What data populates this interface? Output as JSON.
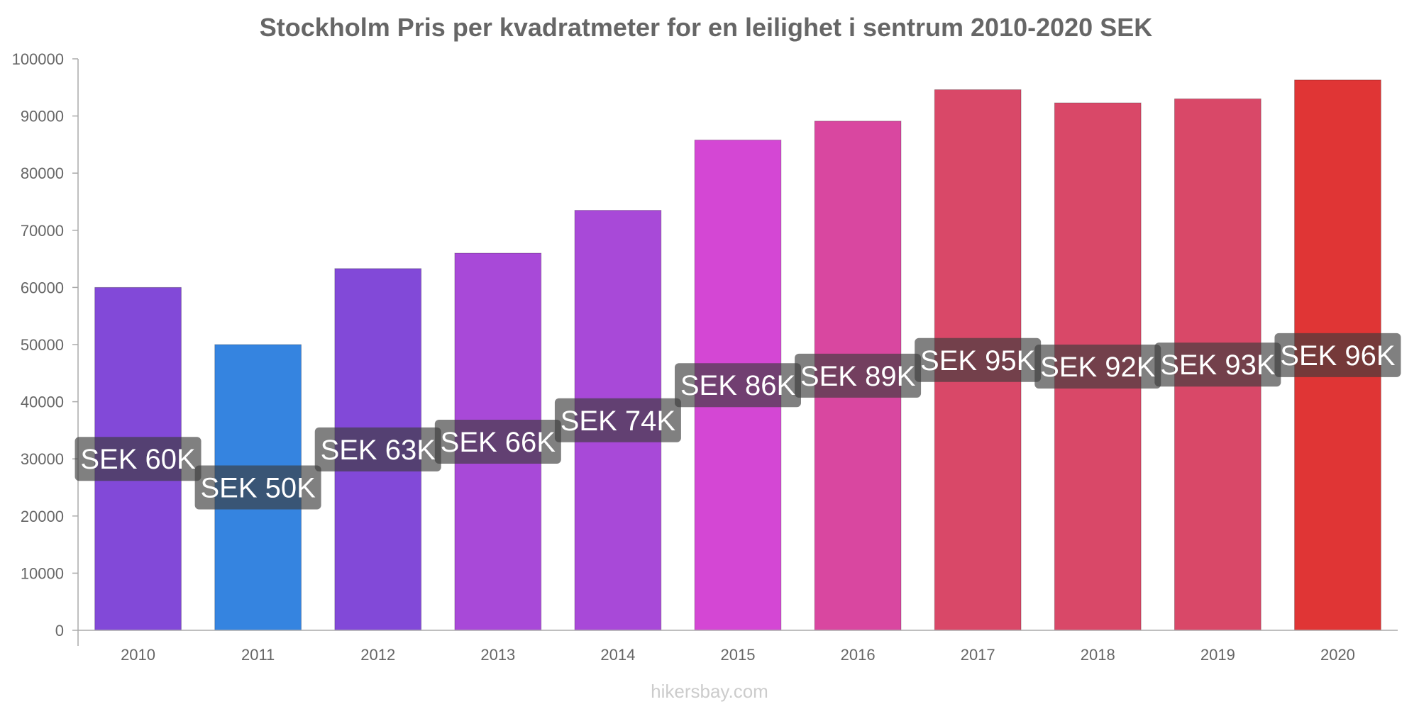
{
  "title": "Stockholm Pris per kvadratmeter for en leilighet i sentrum 2010-2020 SEK",
  "watermark": "hikersbay.com",
  "chart_data": {
    "type": "bar",
    "title": "Stockholm Pris per kvadratmeter for en leilighet i sentrum 2010-2020 SEK",
    "xlabel": "",
    "ylabel": "",
    "ylim": [
      0,
      100000
    ],
    "yticks": [
      0,
      10000,
      20000,
      30000,
      40000,
      50000,
      60000,
      70000,
      80000,
      90000,
      100000
    ],
    "grid": false,
    "categories": [
      "2010",
      "2011",
      "2012",
      "2013",
      "2014",
      "2015",
      "2016",
      "2017",
      "2018",
      "2019",
      "2020"
    ],
    "values": [
      60000,
      50000,
      63300,
      66000,
      73500,
      85800,
      89100,
      94600,
      92300,
      93000,
      96300
    ],
    "labels": [
      "SEK 60K",
      "SEK 50K",
      "SEK 63K",
      "SEK 66K",
      "SEK 74K",
      "SEK 86K",
      "SEK 89K",
      "SEK 95K",
      "SEK 92K",
      "SEK 93K",
      "SEK 96K"
    ],
    "colors": [
      "#8249d8",
      "#3584e0",
      "#8249d8",
      "#a849d8",
      "#a849d8",
      "#d447d4",
      "#d947a0",
      "#d94868",
      "#d94868",
      "#d94868",
      "#e03535"
    ]
  }
}
